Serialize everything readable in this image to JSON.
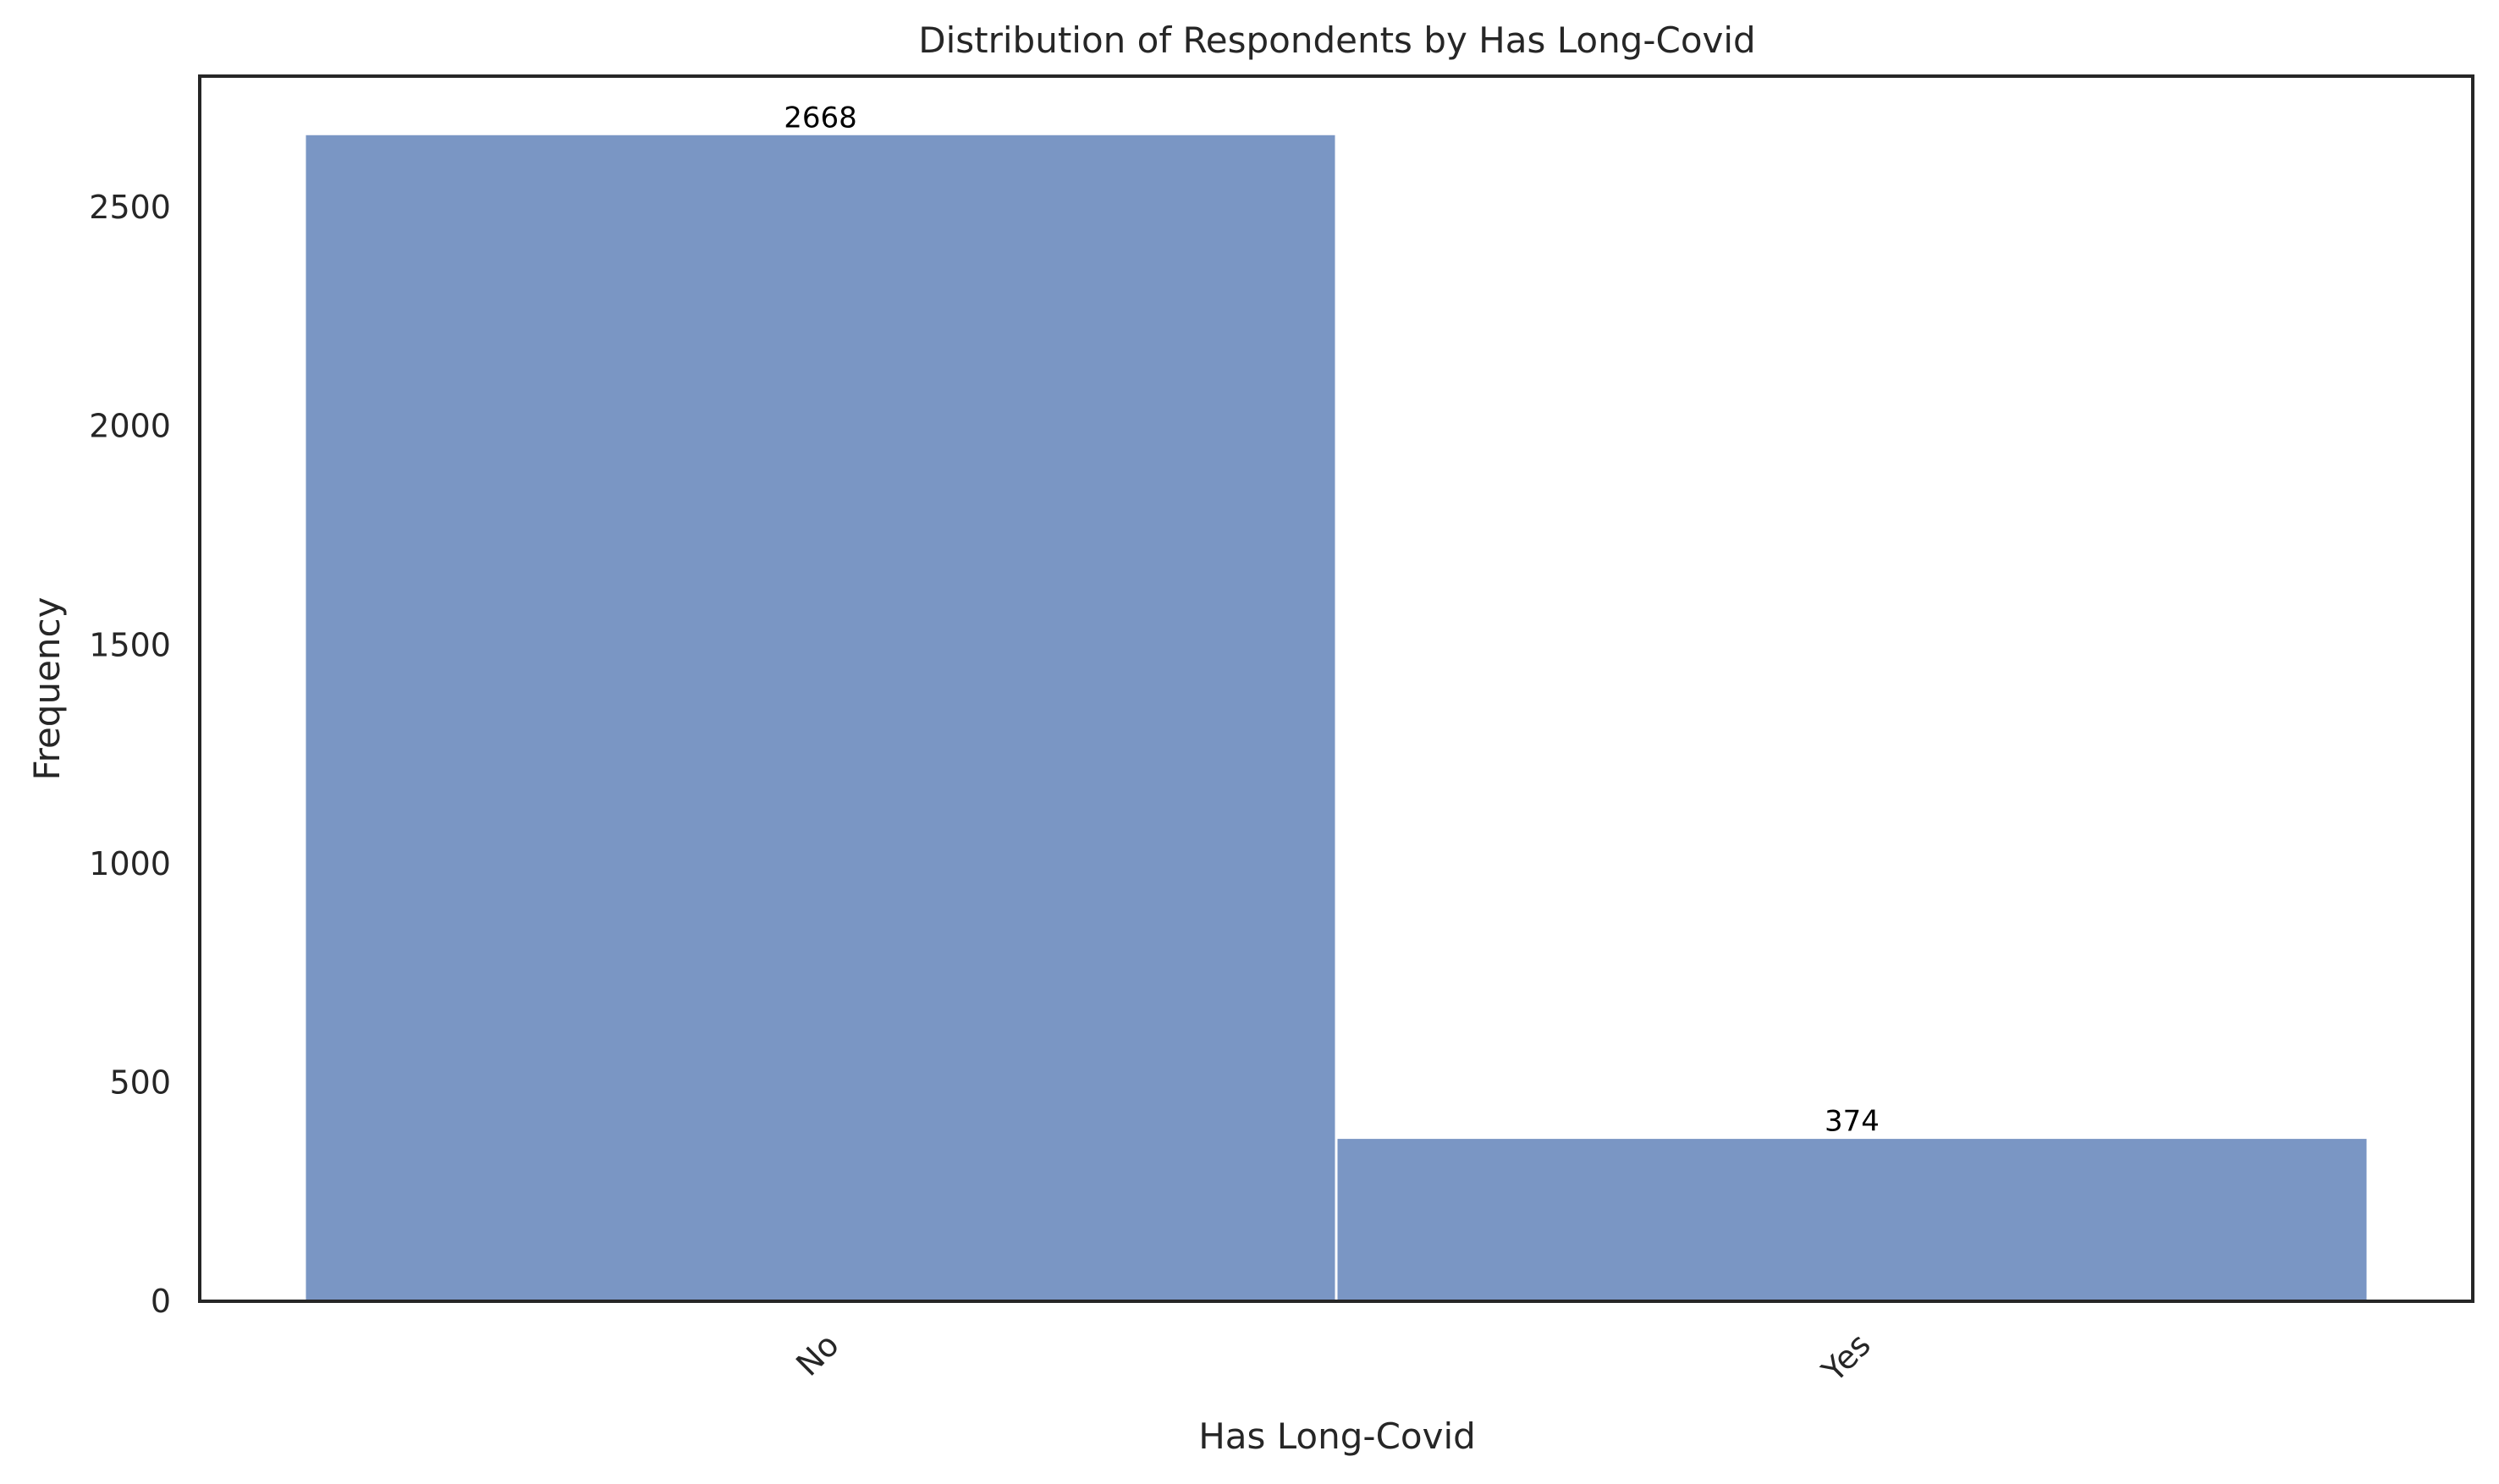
{
  "chart_data": {
    "type": "bar",
    "title": "Distribution of Respondents by Has Long-Covid",
    "xlabel": "Has Long-Covid",
    "ylabel": "Frequency",
    "categories": [
      "No",
      "Yes"
    ],
    "values": [
      2668,
      374
    ],
    "data_labels": [
      "2668",
      "374"
    ],
    "ylim": [
      0,
      2800
    ],
    "yticks": [
      0,
      500,
      1000,
      1500,
      2000,
      2500
    ],
    "ytick_labels": [
      "0",
      "500",
      "1000",
      "1500",
      "2000",
      "2500"
    ],
    "grid": false,
    "legend": "none",
    "bar_color": "#7a96c4",
    "xtick_rotation_deg": 45
  }
}
